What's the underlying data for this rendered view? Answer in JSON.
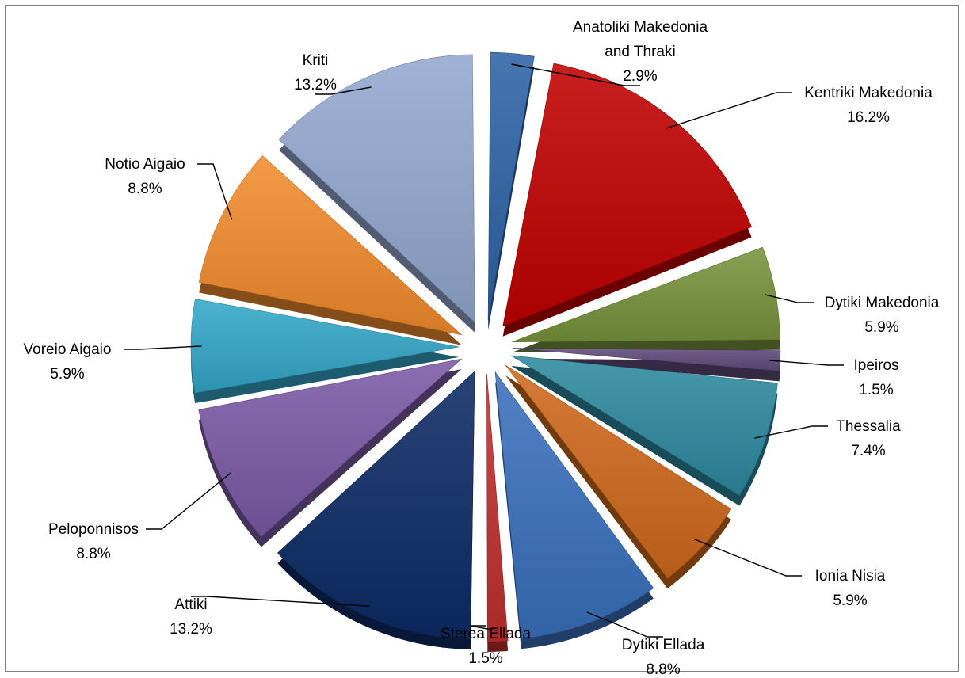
{
  "chart_data": {
    "type": "pie",
    "title": "",
    "legend": "none",
    "slices": [
      {
        "label": "Anatoliki Makedonia and Thraki",
        "label_lines": [
          "Anatoliki Makedonia",
          "and Thraki"
        ],
        "value": 2.9,
        "value_label": "2.9%",
        "color": "#2e62a5"
      },
      {
        "label": "Kentriki Makedonia",
        "label_lines": [
          "Kentriki Makedonia"
        ],
        "value": 16.2,
        "value_label": "16.2%",
        "color": "#c00000"
      },
      {
        "label": "Dytiki Makedonia",
        "label_lines": [
          "Dytiki Makedonia"
        ],
        "value": 5.9,
        "value_label": "5.9%",
        "color": "#77933c"
      },
      {
        "label": "Ipeiros",
        "label_lines": [
          "Ipeiros"
        ],
        "value": 1.5,
        "value_label": "1.5%",
        "color": "#604a7b"
      },
      {
        "label": "Thessalia",
        "label_lines": [
          "Thessalia"
        ],
        "value": 7.4,
        "value_label": "7.4%",
        "color": "#2e8aa0"
      },
      {
        "label": "Ionia Nisia",
        "label_lines": [
          "Ionia Nisia"
        ],
        "value": 5.9,
        "value_label": "5.9%",
        "color": "#d0691c"
      },
      {
        "label": "Dytiki Ellada",
        "label_lines": [
          "Dytiki Ellada"
        ],
        "value": 8.8,
        "value_label": "8.8%",
        "color": "#3a70be"
      },
      {
        "label": "Sterea Ellada",
        "label_lines": [
          "Sterea Ellada"
        ],
        "value": 1.5,
        "value_label": "1.5%",
        "color": "#c0302e"
      },
      {
        "label": "Attiki",
        "label_lines": [
          "Attiki"
        ],
        "value": 13.2,
        "value_label": "13.2%",
        "color": "#0d2b66"
      },
      {
        "label": "Peloponnisos",
        "label_lines": [
          "Peloponnisos"
        ],
        "value": 8.8,
        "value_label": "8.8%",
        "color": "#7b5aa6"
      },
      {
        "label": "Voreio Aigaio",
        "label_lines": [
          "Voreio Aigaio"
        ],
        "value": 5.9,
        "value_label": "5.9%",
        "color": "#33a7c8"
      },
      {
        "label": "Notio Aigaio",
        "label_lines": [
          "Notio Aigaio"
        ],
        "value": 8.8,
        "value_label": "8.8%",
        "color": "#f28c2e"
      },
      {
        "label": "Kriti",
        "label_lines": [
          "Kriti"
        ],
        "value": 13.2,
        "value_label": "13.2%",
        "color": "#93a8cf"
      }
    ]
  }
}
